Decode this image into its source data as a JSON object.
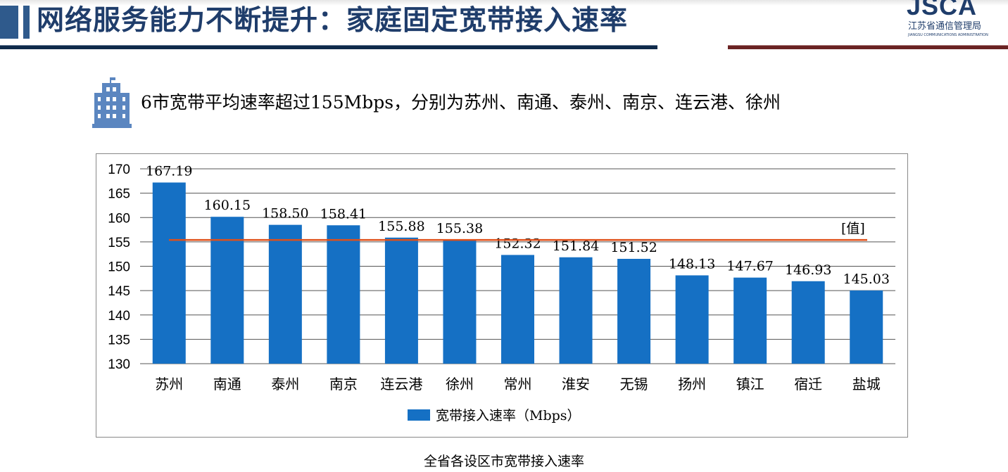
{
  "header": {
    "title": "网络服务能力不断提升：家庭固定宽带接入速率",
    "logo_text": "JSCA",
    "logo_cn": "江苏省通信管理局",
    "logo_en": "JIANGSU COMMUNICATIONS ADMINISTRATION"
  },
  "subtitle": "6市宽带平均速率超过155Mbps，分别为苏州、南通、泰州、南京、连云港、徐州",
  "caption": "全省各设区市宽带接入速率",
  "colors": {
    "bar": "#1570c4",
    "ref_line": "#e0501a",
    "title": "#1f3d6b"
  },
  "chart_data": {
    "type": "bar",
    "categories": [
      "苏州",
      "南通",
      "泰州",
      "南京",
      "连云港",
      "徐州",
      "常州",
      "淮安",
      "无锡",
      "扬州",
      "镇江",
      "宿迁",
      "盐城"
    ],
    "series": [
      {
        "name": "宽带接入速率（Mbps）",
        "values": [
          167.19,
          160.15,
          158.5,
          158.41,
          155.88,
          155.38,
          152.32,
          151.84,
          151.52,
          148.13,
          147.67,
          146.93,
          145.03
        ]
      }
    ],
    "value_labels": [
      "167.19",
      "160.15",
      "158.50",
      "158.41",
      "155.88",
      "155.38",
      "152.32",
      "151.84",
      "151.52",
      "148.13",
      "147.67",
      "146.93",
      "145.03"
    ],
    "ylim": [
      130,
      170
    ],
    "yticks": [
      "130",
      "135",
      "140",
      "145",
      "150",
      "155",
      "160",
      "165",
      "170"
    ],
    "reference_line": {
      "value": 155.4,
      "label": "[值]"
    },
    "grid": true,
    "legend": "bottom"
  }
}
